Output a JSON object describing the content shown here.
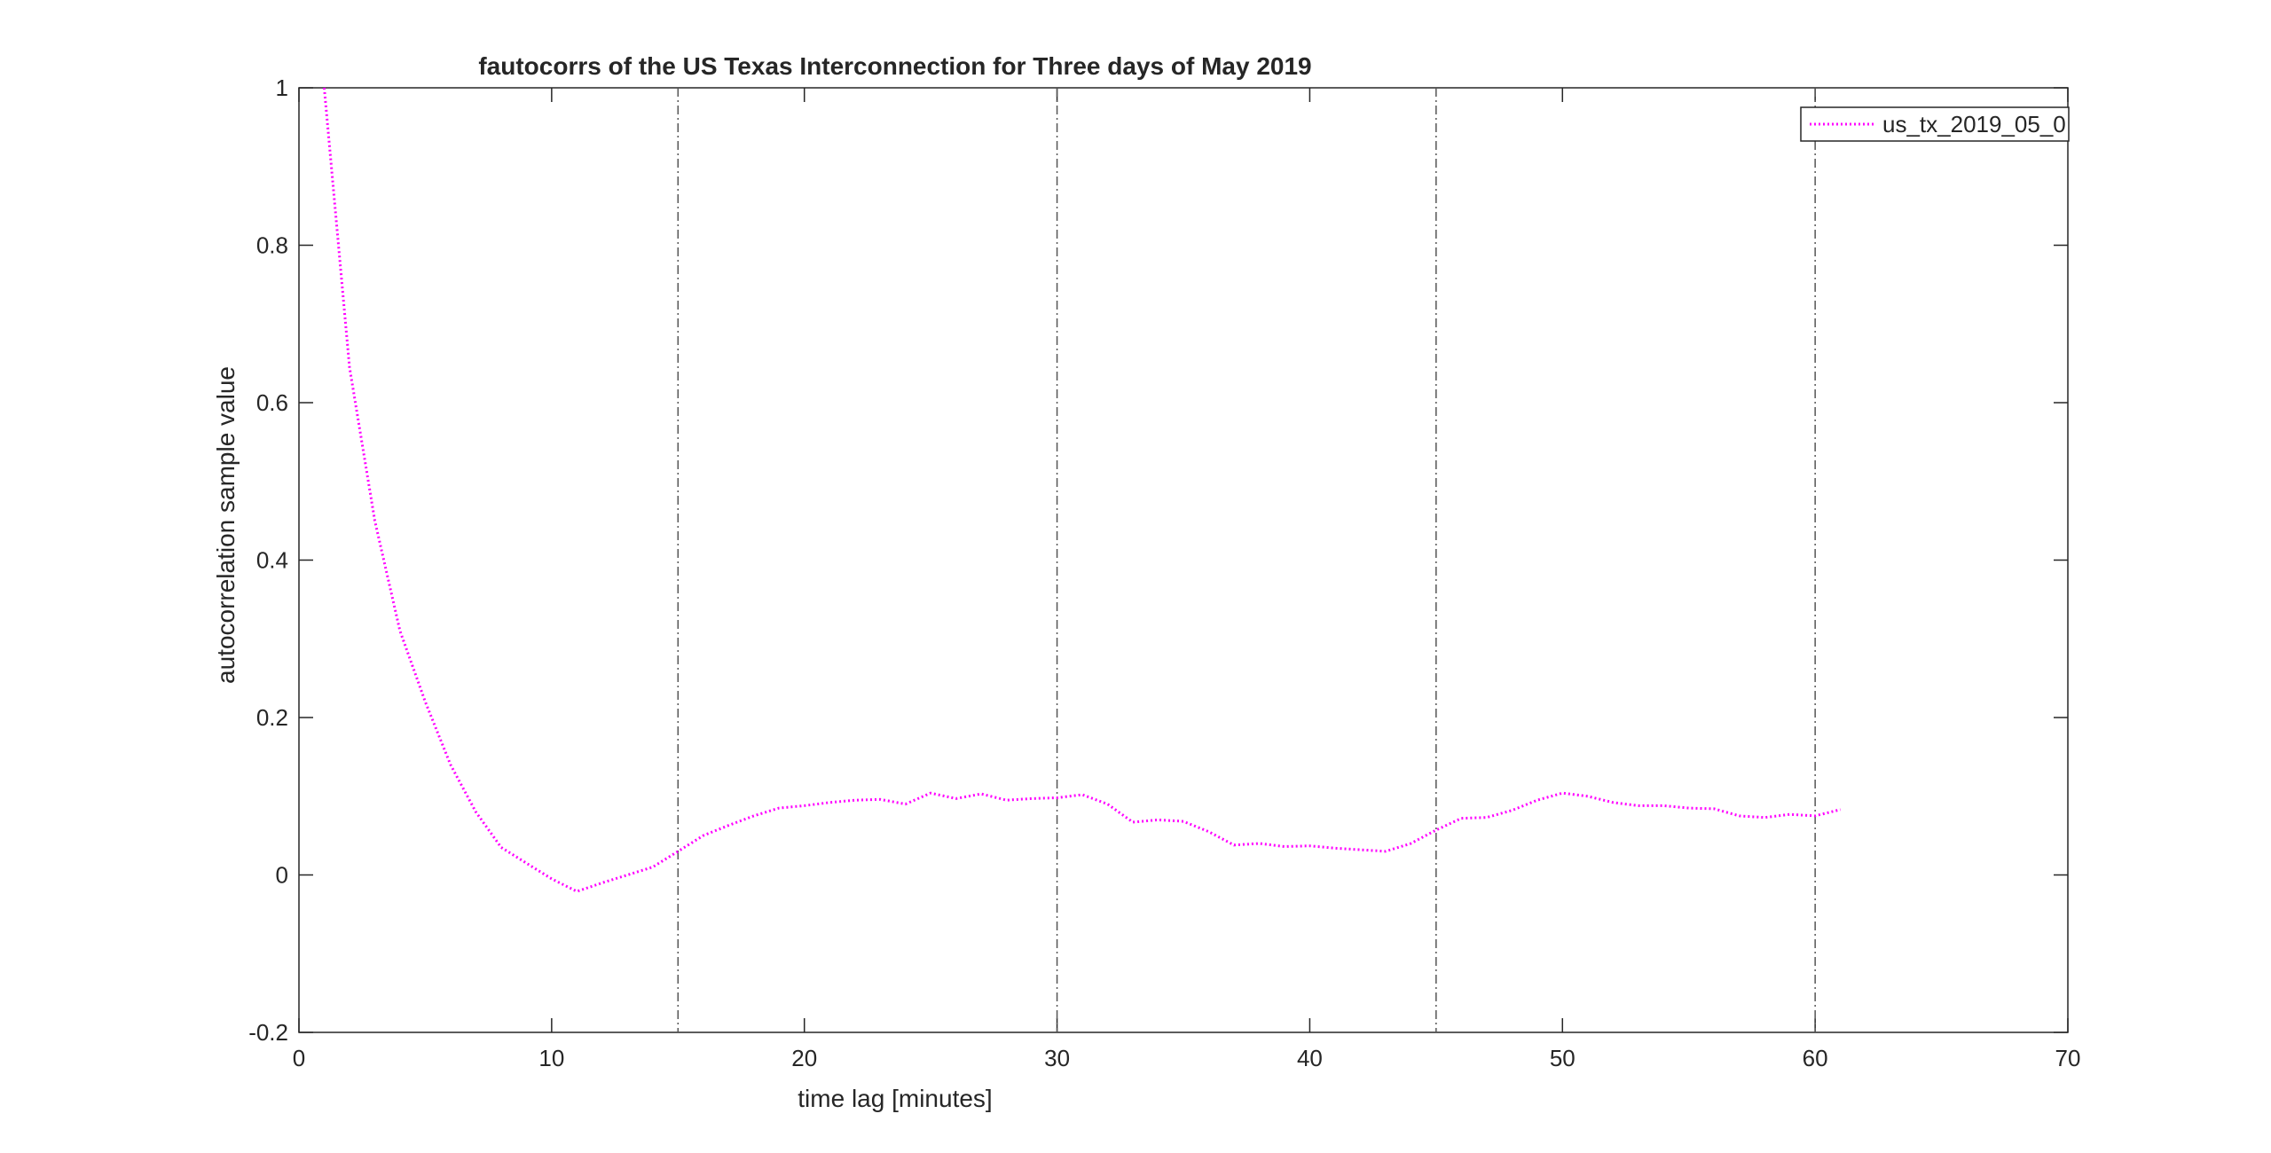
{
  "chart_data": {
    "type": "line",
    "title": "fautocorrs of the US Texas Interconnection for Three days of May 2019",
    "xlabel": "time lag [minutes]",
    "ylabel": "autocorrelation sample value",
    "xlim": [
      0,
      70
    ],
    "ylim": [
      -0.2,
      1
    ],
    "xticks": [
      0,
      10,
      20,
      30,
      40,
      50,
      60,
      70
    ],
    "xtick_labels": [
      "0",
      "10",
      "20",
      "30",
      "40",
      "50",
      "60",
      "70"
    ],
    "yticks": [
      -0.2,
      0,
      0.2,
      0.4,
      0.6,
      0.8,
      1
    ],
    "ytick_labels": [
      "-0.2",
      "0",
      "0.2",
      "0.4",
      "0.6",
      "0.8",
      "1"
    ],
    "grid": false,
    "legend_position": "top-right",
    "vertical_lines": [
      15,
      30,
      45,
      60
    ],
    "vertical_line_color": "#555555",
    "series": [
      {
        "name": "us_tx_2019_05_0",
        "color": "#ff00ff",
        "style": "dotted",
        "x": [
          1,
          2,
          3,
          4,
          5,
          6,
          7,
          8,
          9,
          10,
          11,
          12,
          13,
          14,
          15,
          16,
          17,
          18,
          19,
          20,
          21,
          22,
          23,
          24,
          25,
          26,
          27,
          28,
          29,
          30,
          31,
          32,
          33,
          34,
          35,
          36,
          37,
          38,
          39,
          40,
          41,
          42,
          43,
          44,
          45,
          46,
          47,
          48,
          49,
          50,
          51,
          52,
          53,
          54,
          55,
          56,
          57,
          58,
          59,
          60,
          61
        ],
        "values": [
          1.0,
          0.645,
          0.45,
          0.31,
          0.22,
          0.14,
          0.08,
          0.035,
          0.015,
          -0.005,
          -0.021,
          -0.01,
          0.0,
          0.01,
          0.03,
          0.05,
          0.063,
          0.075,
          0.085,
          0.088,
          0.092,
          0.095,
          0.096,
          0.09,
          0.104,
          0.097,
          0.103,
          0.095,
          0.097,
          0.098,
          0.102,
          0.09,
          0.067,
          0.07,
          0.068,
          0.055,
          0.038,
          0.04,
          0.036,
          0.037,
          0.034,
          0.032,
          0.03,
          0.04,
          0.057,
          0.072,
          0.073,
          0.082,
          0.095,
          0.104,
          0.1,
          0.092,
          0.088,
          0.088,
          0.085,
          0.084,
          0.075,
          0.073,
          0.077,
          0.075,
          0.083
        ]
      }
    ]
  }
}
